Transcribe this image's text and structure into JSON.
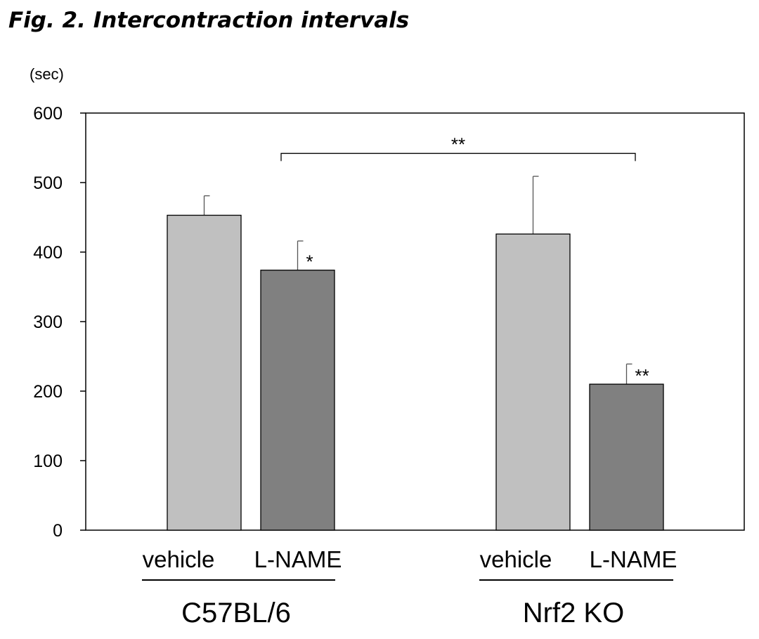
{
  "figure_title": "Fig. 2.  Intercontraction intervals",
  "chart_data": {
    "type": "bar",
    "title": "Fig. 2.  Intercontraction intervals",
    "ylabel": "(sec)",
    "xlabel": "",
    "ylim": [
      0,
      600
    ],
    "yticks": [
      0,
      100,
      200,
      300,
      400,
      500,
      600
    ],
    "grid": false,
    "legend": "none",
    "groups": [
      {
        "name": "C57BL/6",
        "bars": [
          {
            "label": "vehicle",
            "value": 453,
            "error": 28,
            "color": "#c0c0c0",
            "sig": ""
          },
          {
            "label": "L-NAME",
            "value": 374,
            "error": 42,
            "color": "#808080",
            "sig": "*"
          }
        ]
      },
      {
        "name": "Nrf2 KO",
        "bars": [
          {
            "label": "vehicle",
            "value": 426,
            "error": 83,
            "color": "#c0c0c0",
            "sig": ""
          },
          {
            "label": "L-NAME",
            "value": 210,
            "error": 29,
            "color": "#808080",
            "sig": "**"
          }
        ]
      }
    ],
    "brackets": [
      {
        "from_group": 0,
        "from_bar": 1,
        "to_group": 1,
        "to_bar": 1,
        "at_value": 542,
        "label": "**"
      }
    ]
  }
}
